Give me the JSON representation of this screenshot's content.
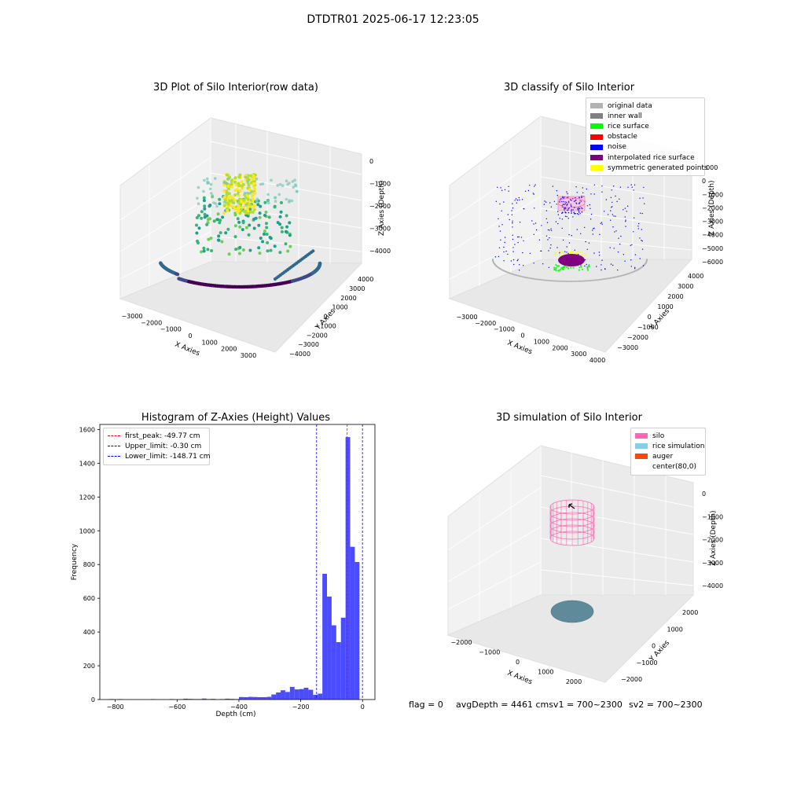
{
  "suptitle": "DTDTR01 2025-06-17 12:23:05",
  "panels": {
    "raw": {
      "title": "3D Plot of Silo Interior(row data)",
      "xlabel": "X Axies",
      "ylabel": "Y Axies",
      "zlabel": "Z Axies (Depth)",
      "xticks": [
        "−3000",
        "−2000",
        "−1000",
        "0",
        "1000",
        "2000",
        "3000"
      ],
      "yticks": [
        "−4000",
        "−3000",
        "−2000",
        "−1000",
        "0",
        "1000",
        "2000",
        "3000",
        "4000"
      ],
      "zticks": [
        "0",
        "−1000",
        "−2000",
        "−3000",
        "−4000"
      ]
    },
    "classify": {
      "title": "3D classify of Silo Interior",
      "xlabel": "X Axies",
      "ylabel": "Y Axies",
      "zlabel": "Z Axies (Depth)",
      "xticks": [
        "−3000",
        "−2000",
        "−1000",
        "0",
        "1000",
        "2000",
        "3000",
        "4000"
      ],
      "yticks": [
        "−3000",
        "−2000",
        "−1000",
        "0",
        "1000",
        "2000",
        "3000",
        "4000"
      ],
      "zticks": [
        "1000",
        "0",
        "−1000",
        "−2000",
        "−3000",
        "−4000",
        "−5000",
        "−6000"
      ],
      "legend": [
        {
          "label": "original data",
          "color": "#b3b3b3"
        },
        {
          "label": "inner wall",
          "color": "#808080"
        },
        {
          "label": "rice surface",
          "color": "#00ff00"
        },
        {
          "label": "obstacle",
          "color": "#ff0000"
        },
        {
          "label": "noise",
          "color": "#0000ff"
        },
        {
          "label": "interpolated rice surface",
          "color": "#800080"
        },
        {
          "label": "symmetric generated points",
          "color": "#ffff00"
        }
      ]
    },
    "simulation": {
      "title": "3D simulation of Silo Interior",
      "xlabel": "X Axies",
      "ylabel": "Y Axies",
      "zlabel": "Z Axies (Depth)",
      "xticks": [
        "−2000",
        "−1000",
        "0",
        "1000",
        "2000"
      ],
      "yticks": [
        "−2000",
        "−1000",
        "0",
        "1000",
        "2000"
      ],
      "zticks": [
        "0",
        "−1000",
        "−2000",
        "−3000",
        "−4000"
      ],
      "legend": [
        {
          "label": "silo",
          "color": "#ff69b4"
        },
        {
          "label": "rice simulation",
          "color": "#87ceeb"
        },
        {
          "label": "auger",
          "color": "#ff4500"
        },
        {
          "label": "center(80,0)",
          "color": "#ffffff"
        }
      ]
    }
  },
  "footer": {
    "flag": "flag = 0",
    "avg": "avgDepth = 4461 cmsv1 = 700~2300",
    "sv2": "sv2 = 700~2300"
  },
  "chart_data": [
    {
      "type": "scatter",
      "title": "3D Plot of Silo Interior(row data)",
      "xlabel": "X Axies",
      "ylabel": "Y Axies",
      "zlabel": "Z Axies (Depth)",
      "xlim": [
        -3500,
        3500
      ],
      "ylim": [
        -4000,
        4000
      ],
      "zlim": [
        -4500,
        0
      ]
    },
    {
      "type": "scatter",
      "title": "3D classify of Silo Interior",
      "xlabel": "X Axies",
      "ylabel": "Y Axies",
      "zlabel": "Z Axies (Depth)",
      "xlim": [
        -3500,
        4000
      ],
      "ylim": [
        -3500,
        4000
      ],
      "zlim": [
        -6500,
        1000
      ],
      "legend_placement": "top-right"
    },
    {
      "type": "bar",
      "title": "Histogram of Z-Axies (Height) Values",
      "xlabel": "Depth (cm)",
      "ylabel": "Frequency",
      "xlim": [
        -850,
        40
      ],
      "ylim": [
        0,
        1630
      ],
      "xticks": [
        "−800",
        "−600",
        "−400",
        "−200",
        "0"
      ],
      "yticks": [
        "0",
        "200",
        "400",
        "600",
        "800",
        "1000",
        "1200",
        "1400",
        "1600"
      ],
      "color": "#0000ff",
      "bin_width": 14.9,
      "bins": [
        [
          -820,
          3
        ],
        [
          -805,
          2
        ],
        [
          -790,
          3
        ],
        [
          -760,
          2
        ],
        [
          -745,
          2
        ],
        [
          -730,
          2
        ],
        [
          -715,
          2
        ],
        [
          -685,
          3
        ],
        [
          -670,
          2
        ],
        [
          -655,
          2
        ],
        [
          -625,
          3
        ],
        [
          -595,
          2
        ],
        [
          -580,
          5
        ],
        [
          -565,
          4
        ],
        [
          -550,
          3
        ],
        [
          -535,
          3
        ],
        [
          -520,
          6
        ],
        [
          -505,
          3
        ],
        [
          -490,
          4
        ],
        [
          -475,
          2
        ],
        [
          -460,
          3
        ],
        [
          -445,
          5
        ],
        [
          -430,
          4
        ],
        [
          -415,
          3
        ],
        [
          -400,
          15
        ],
        [
          -385,
          14
        ],
        [
          -370,
          16
        ],
        [
          -355,
          15
        ],
        [
          -340,
          14
        ],
        [
          -325,
          14
        ],
        [
          -310,
          16
        ],
        [
          -295,
          30
        ],
        [
          -280,
          42
        ],
        [
          -265,
          55
        ],
        [
          -250,
          45
        ],
        [
          -235,
          75
        ],
        [
          -220,
          60
        ],
        [
          -205,
          62
        ],
        [
          -190,
          70
        ],
        [
          -175,
          58
        ],
        [
          -160,
          28
        ],
        [
          -145,
          35
        ],
        [
          -130,
          745
        ],
        [
          -115,
          610
        ],
        [
          -100,
          440
        ],
        [
          -85,
          340
        ],
        [
          -70,
          485
        ],
        [
          -55,
          1555
        ],
        [
          -40,
          905
        ],
        [
          -25,
          815
        ]
      ],
      "lines": [
        {
          "label": "first_peak: -49.77 cm",
          "x": -49.77,
          "color": "#ff0000"
        },
        {
          "label": "Upper_limit: -0.30 cm",
          "x": -0.3,
          "color": "#0000ff"
        },
        {
          "label": "Lower_limit: -148.71 cm",
          "x": -148.71,
          "color": "#0000ff"
        }
      ],
      "legend_placement": "top-left"
    },
    {
      "type": "scatter",
      "title": "3D simulation of Silo Interior",
      "xlabel": "X Axies",
      "ylabel": "Y Axies",
      "zlabel": "Z Axies (Depth)",
      "xlim": [
        -2500,
        2500
      ],
      "ylim": [
        -2500,
        2500
      ],
      "zlim": [
        -4500,
        0
      ],
      "legend_placement": "top-right"
    }
  ]
}
